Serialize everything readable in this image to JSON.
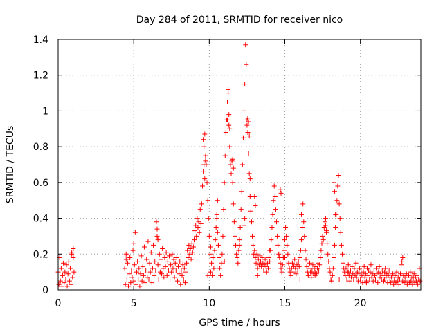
{
  "chart_data": {
    "type": "scatter",
    "title": "Day 284 of 2011, SRMTID for receiver nico",
    "xlabel": "GPS time / hours",
    "ylabel": "SRMTID / TECUs",
    "xlim": [
      0,
      24
    ],
    "ylim": [
      0,
      1.4
    ],
    "xticks": [
      0,
      5,
      10,
      15,
      20
    ],
    "yticks": [
      0,
      0.2,
      0.4,
      0.6,
      0.8,
      1,
      1.2,
      1.4
    ],
    "xtick_labels": [
      "0",
      "5",
      "10",
      "15",
      "20"
    ],
    "ytick_labels": [
      "0",
      "0.2",
      "0.4",
      "0.6",
      "0.8",
      "1",
      "1.2",
      "1.4"
    ],
    "grid": true,
    "marker": "+",
    "series": [
      {
        "name": "SRMTID",
        "color": "#ff0000",
        "x": [
          0.0,
          0.05,
          0.1,
          0.15,
          0.2,
          0.25,
          0.3,
          0.35,
          0.4,
          0.45,
          0.5,
          0.55,
          0.6,
          0.65,
          0.7,
          0.75,
          0.8,
          0.85,
          0.9,
          0.95,
          1.0,
          1.05,
          4.4,
          4.45,
          4.5,
          4.55,
          4.6,
          4.65,
          4.7,
          4.75,
          4.8,
          4.85,
          4.9,
          4.95,
          5.0,
          5.05,
          5.1,
          5.15,
          5.2,
          5.25,
          5.3,
          5.35,
          5.4,
          5.45,
          5.5,
          5.55,
          5.6,
          5.65,
          5.7,
          5.75,
          5.8,
          5.85,
          5.9,
          5.95,
          6.0,
          6.05,
          6.1,
          6.15,
          6.2,
          6.25,
          6.3,
          6.35,
          6.4,
          6.45,
          6.5,
          6.55,
          6.6,
          6.65,
          6.7,
          6.75,
          6.8,
          6.85,
          6.9,
          6.95,
          7.0,
          7.05,
          7.1,
          7.15,
          7.2,
          7.25,
          7.3,
          7.35,
          7.4,
          7.45,
          7.5,
          7.55,
          7.6,
          7.65,
          7.7,
          7.75,
          7.8,
          7.85,
          7.9,
          7.95,
          8.0,
          8.05,
          8.1,
          8.15,
          8.2,
          8.25,
          8.3,
          8.35,
          8.4,
          8.45,
          8.5,
          8.55,
          8.6,
          8.65,
          8.7,
          8.75,
          8.8,
          8.85,
          8.9,
          8.95,
          9.0,
          9.05,
          9.1,
          9.15,
          9.2,
          9.25,
          9.3,
          9.35,
          9.4,
          9.45,
          9.5,
          9.55,
          9.6,
          9.65,
          9.7,
          9.75,
          9.8,
          9.85,
          9.9,
          9.95,
          10.0,
          10.05,
          10.1,
          10.15,
          10.2,
          10.25,
          10.3,
          10.35,
          10.4,
          10.45,
          10.5,
          10.55,
          10.6,
          10.65,
          10.7,
          10.75,
          10.8,
          10.85,
          10.9,
          10.95,
          11.0,
          11.05,
          11.1,
          11.15,
          11.2,
          11.25,
          11.3,
          11.35,
          11.4,
          11.45,
          11.5,
          11.55,
          11.6,
          11.65,
          11.7,
          11.75,
          11.8,
          11.85,
          11.9,
          11.95,
          12.0,
          12.05,
          12.1,
          12.15,
          12.2,
          12.25,
          12.3,
          12.35,
          12.4,
          12.45,
          12.5,
          12.55,
          12.6,
          12.65,
          12.7,
          12.75,
          12.8,
          12.85,
          12.9,
          12.95,
          13.0,
          13.05,
          13.1,
          13.15,
          13.2,
          13.25,
          13.3,
          13.35,
          13.4,
          13.45,
          13.5,
          13.55,
          13.6,
          13.65,
          13.7,
          13.75,
          13.8,
          13.85,
          13.9,
          13.95,
          14.0,
          14.05,
          14.1,
          14.15,
          14.2,
          14.25,
          14.3,
          14.35,
          14.4,
          14.45,
          14.5,
          14.55,
          14.6,
          14.65,
          14.7,
          14.75,
          14.8,
          14.85,
          14.9,
          14.95,
          15.0,
          15.05,
          15.1,
          15.15,
          15.2,
          15.25,
          15.3,
          15.35,
          15.4,
          15.45,
          15.5,
          15.55,
          15.6,
          15.65,
          15.7,
          15.75,
          15.8,
          15.85,
          15.9,
          15.95,
          16.0,
          16.05,
          16.1,
          16.15,
          16.2,
          16.25,
          16.3,
          16.35,
          16.4,
          16.45,
          16.5,
          16.55,
          16.6,
          16.65,
          16.7,
          16.75,
          16.8,
          16.85,
          16.9,
          16.95,
          17.0,
          17.05,
          17.1,
          17.15,
          17.2,
          17.25,
          17.3,
          17.35,
          17.4,
          17.45,
          17.5,
          17.55,
          17.6,
          17.65,
          17.7,
          17.75,
          17.8,
          17.85,
          17.9,
          17.95,
          18.0,
          18.05,
          18.1,
          18.15,
          18.2,
          18.25,
          18.3,
          18.35,
          18.4,
          18.45,
          18.5,
          18.55,
          18.6,
          18.65,
          18.7,
          18.75,
          18.8,
          18.85,
          18.9,
          18.95,
          19.0,
          19.05,
          19.1,
          19.15,
          19.2,
          19.25,
          19.3,
          19.35,
          19.4,
          19.45,
          19.5,
          19.55,
          19.6,
          19.65,
          19.7,
          19.75,
          19.8,
          19.85,
          19.9,
          19.95,
          20.0,
          20.05,
          20.1,
          20.15,
          20.2,
          20.25,
          20.3,
          20.35,
          20.4,
          20.45,
          20.5,
          20.55,
          20.6,
          20.65,
          20.7,
          20.75,
          20.8,
          20.85,
          20.9,
          20.95,
          21.0,
          21.05,
          21.1,
          21.15,
          21.2,
          21.25,
          21.3,
          21.35,
          21.4,
          21.45,
          21.5,
          21.55,
          21.6,
          21.65,
          21.7,
          21.75,
          21.8,
          21.85,
          21.9,
          21.95,
          22.0,
          22.05,
          22.1,
          22.15,
          22.2,
          22.25,
          22.3,
          22.35,
          22.4,
          22.45,
          22.5,
          22.55,
          22.6,
          22.65,
          22.7,
          22.75,
          22.8,
          22.85,
          22.9,
          22.95,
          23.0,
          23.05,
          23.1,
          23.15,
          23.2,
          23.25,
          23.3,
          23.35,
          23.4,
          23.45,
          23.5,
          23.55,
          23.6,
          23.65,
          23.7,
          23.75,
          23.8,
          23.85,
          23.9,
          23.95,
          9.6,
          9.65,
          9.7,
          9.75,
          11.2,
          11.25,
          11.3,
          11.35,
          11.55,
          11.6,
          12.5,
          12.55,
          12.6,
          12.65,
          12.7,
          14.7,
          14.75,
          18.25,
          18.3,
          18.35,
          17.7,
          17.75,
          16.1,
          13.0,
          13.05,
          10.1,
          10.5,
          10.55,
          12.3,
          12.35,
          6.55,
          6.6,
          5.0,
          4.5,
          0.9,
          1.0,
          9.9,
          11.0,
          12.0,
          13.2,
          14.0,
          15.0,
          16.0,
          17.0,
          18.6,
          19.2,
          20.4,
          21.6,
          22.8,
          23.5
        ],
        "y": [
          0.1,
          0.03,
          0.18,
          0.05,
          0.12,
          0.02,
          0.08,
          0.15,
          0.04,
          0.1,
          0.06,
          0.14,
          0.02,
          0.09,
          0.16,
          0.05,
          0.12,
          0.03,
          0.2,
          0.07,
          0.23,
          0.1,
          0.12,
          0.03,
          0.2,
          0.06,
          0.15,
          0.02,
          0.09,
          0.18,
          0.04,
          0.11,
          0.07,
          0.22,
          0.05,
          0.14,
          0.32,
          0.03,
          0.1,
          0.16,
          0.06,
          0.12,
          0.02,
          0.09,
          0.19,
          0.05,
          0.13,
          0.08,
          0.24,
          0.04,
          0.11,
          0.17,
          0.07,
          0.27,
          0.06,
          0.15,
          0.1,
          0.21,
          0.04,
          0.12,
          0.25,
          0.08,
          0.16,
          0.11,
          0.38,
          0.3,
          0.14,
          0.06,
          0.2,
          0.1,
          0.17,
          0.09,
          0.23,
          0.12,
          0.07,
          0.18,
          0.13,
          0.21,
          0.08,
          0.16,
          0.11,
          0.19,
          0.06,
          0.14,
          0.1,
          0.2,
          0.12,
          0.17,
          0.07,
          0.15,
          0.11,
          0.18,
          0.05,
          0.13,
          0.09,
          0.16,
          0.03,
          0.11,
          0.08,
          0.14,
          0.06,
          0.12,
          0.04,
          0.1,
          0.15,
          0.22,
          0.18,
          0.25,
          0.2,
          0.23,
          0.17,
          0.26,
          0.21,
          0.24,
          0.28,
          0.33,
          0.36,
          0.3,
          0.4,
          0.35,
          0.38,
          0.32,
          0.45,
          0.37,
          0.48,
          0.58,
          0.66,
          0.8,
          0.87,
          0.75,
          0.7,
          0.6,
          0.5,
          0.4,
          0.3,
          0.2,
          0.1,
          0.15,
          0.08,
          0.18,
          0.12,
          0.22,
          0.28,
          0.35,
          0.4,
          0.32,
          0.25,
          0.18,
          0.12,
          0.08,
          0.15,
          0.2,
          0.3,
          0.45,
          0.6,
          0.75,
          0.88,
          0.95,
          1.05,
          1.12,
          0.92,
          0.8,
          0.7,
          0.65,
          0.72,
          0.6,
          0.48,
          0.38,
          0.3,
          0.25,
          0.2,
          0.18,
          0.15,
          0.22,
          0.28,
          0.35,
          0.45,
          0.55,
          0.7,
          0.85,
          1.0,
          1.15,
          1.37,
          1.26,
          0.95,
          0.88,
          0.76,
          0.65,
          0.52,
          0.44,
          0.38,
          0.3,
          0.25,
          0.2,
          0.22,
          0.18,
          0.15,
          0.2,
          0.12,
          0.17,
          0.14,
          0.19,
          0.16,
          0.13,
          0.18,
          0.15,
          0.11,
          0.14,
          0.17,
          0.13,
          0.1,
          0.15,
          0.12,
          0.18,
          0.16,
          0.22,
          0.28,
          0.35,
          0.42,
          0.5,
          0.58,
          0.52,
          0.45,
          0.38,
          0.3,
          0.25,
          0.2,
          0.18,
          0.15,
          0.12,
          0.1,
          0.14,
          0.18,
          0.22,
          0.28,
          0.35,
          0.3,
          0.25,
          0.2,
          0.15,
          0.12,
          0.1,
          0.08,
          0.12,
          0.15,
          0.1,
          0.13,
          0.17,
          0.12,
          0.09,
          0.14,
          0.11,
          0.16,
          0.13,
          0.18,
          0.22,
          0.28,
          0.35,
          0.48,
          0.38,
          0.3,
          0.22,
          0.17,
          0.13,
          0.1,
          0.08,
          0.12,
          0.15,
          0.1,
          0.07,
          0.11,
          0.14,
          0.09,
          0.12,
          0.1,
          0.13,
          0.09,
          0.12,
          0.15,
          0.11,
          0.14,
          0.18,
          0.22,
          0.26,
          0.3,
          0.28,
          0.35,
          0.38,
          0.4,
          0.32,
          0.26,
          0.2,
          0.16,
          0.12,
          0.1,
          0.06,
          0.05,
          0.08,
          0.12,
          0.18,
          0.25,
          0.35,
          0.42,
          0.5,
          0.58,
          0.64,
          0.48,
          0.4,
          0.32,
          0.25,
          0.2,
          0.15,
          0.12,
          0.1,
          0.08,
          0.12,
          0.06,
          0.1,
          0.14,
          0.08,
          0.05,
          0.11,
          0.07,
          0.13,
          0.09,
          0.06,
          0.12,
          0.08,
          0.15,
          0.07,
          0.1,
          0.05,
          0.09,
          0.12,
          0.06,
          0.11,
          0.08,
          0.04,
          0.1,
          0.13,
          0.07,
          0.09,
          0.05,
          0.12,
          0.08,
          0.11,
          0.06,
          0.1,
          0.14,
          0.07,
          0.09,
          0.05,
          0.11,
          0.08,
          0.06,
          0.12,
          0.09,
          0.04,
          0.1,
          0.13,
          0.07,
          0.09,
          0.06,
          0.11,
          0.08,
          0.05,
          0.1,
          0.12,
          0.07,
          0.09,
          0.04,
          0.08,
          0.11,
          0.06,
          0.04,
          0.07,
          0.05,
          0.09,
          0.03,
          0.06,
          0.08,
          0.04,
          0.1,
          0.05,
          0.07,
          0.03,
          0.06,
          0.09,
          0.14,
          0.16,
          0.05,
          0.08,
          0.04,
          0.07,
          0.05,
          0.09,
          0.03,
          0.06,
          0.08,
          0.04,
          0.1,
          0.05,
          0.07,
          0.03,
          0.06,
          0.09,
          0.04,
          0.07,
          0.05,
          0.08,
          0.03,
          0.06,
          0.12,
          0.05,
          0.84,
          0.7,
          0.62,
          0.72,
          0.95,
          1.1,
          0.98,
          0.9,
          0.73,
          0.68,
          0.92,
          0.96,
          0.94,
          0.86,
          0.62,
          0.56,
          0.54,
          0.6,
          0.55,
          0.42,
          0.36,
          0.33,
          0.42,
          0.52,
          0.47,
          0.24,
          0.42,
          0.5,
          0.36,
          0.4,
          0.34,
          0.28,
          0.26,
          0.17,
          0.21,
          0.18,
          0.08,
          0.16,
          0.25,
          0.08,
          0.22,
          0.18,
          0.06,
          0.08,
          0.06,
          0.1,
          0.04,
          0.06,
          0.18,
          0.07
        ]
      }
    ]
  }
}
